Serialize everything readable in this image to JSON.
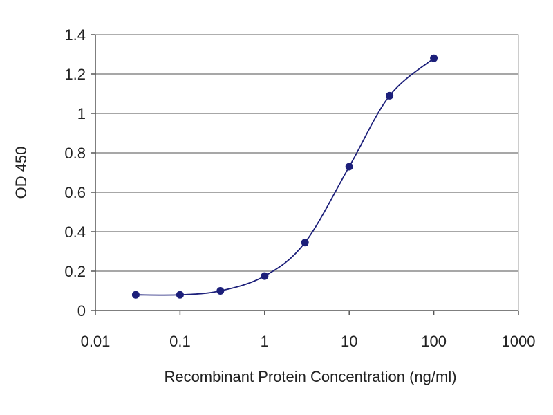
{
  "chart_data": {
    "type": "scatter",
    "title": "",
    "xlabel": "Recombinant Protein Concentration (ng/ml)",
    "ylabel": "OD 450",
    "x_scale": "log",
    "xlim": [
      0.01,
      1000
    ],
    "ylim": [
      0,
      1.4
    ],
    "x_ticks": [
      0.01,
      0.1,
      1,
      10,
      100,
      1000
    ],
    "x_tick_labels": [
      "0.01",
      "0.1",
      "1",
      "10",
      "100",
      "1000"
    ],
    "y_ticks": [
      0,
      0.2,
      0.4,
      0.6,
      0.8,
      1,
      1.2,
      1.4
    ],
    "y_tick_labels": [
      "0",
      "0.2",
      "0.4",
      "0.6",
      "0.8",
      "1",
      "1.2",
      "1.4"
    ],
    "grid": "horizontal",
    "legend": "none",
    "series": [
      {
        "fit_curve": true,
        "color": "#1c1f7a",
        "x": [
          0.03,
          0.1,
          0.3,
          1,
          3,
          10,
          30,
          100
        ],
        "y": [
          0.08,
          0.08,
          0.1,
          0.175,
          0.345,
          0.73,
          1.09,
          1.28
        ]
      }
    ],
    "colors": {
      "plot_background": "#ffffff",
      "gridline": "#8a8a8a",
      "axis": "#555555",
      "series": "#1c1f7a"
    }
  }
}
